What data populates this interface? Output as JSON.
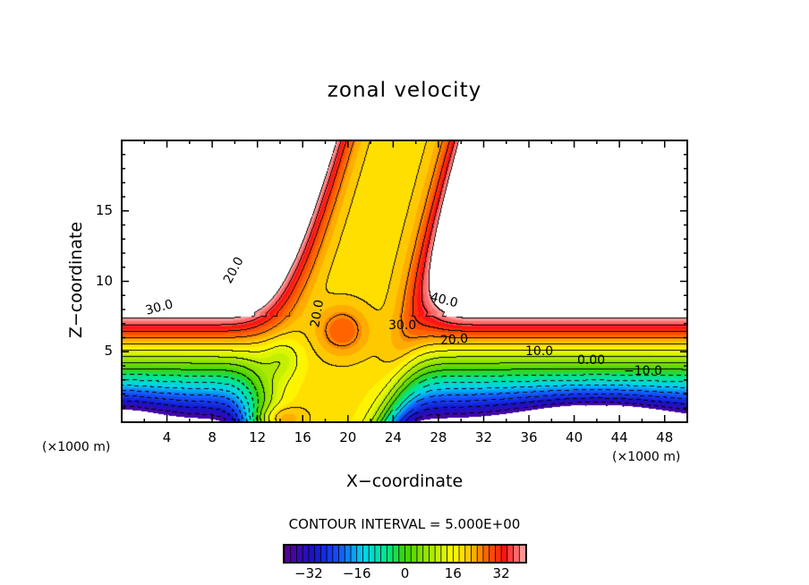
{
  "chart_data": {
    "type": "heatmap",
    "subtype": "filled contour",
    "title": "zonal velocity",
    "xlabel": "X−coordinate",
    "ylabel": "Z−coordinate",
    "x_unit_left": "(×1000 m)",
    "x_unit_right": "(×1000 m)",
    "xlim": [
      0,
      50
    ],
    "ylim": [
      0,
      20
    ],
    "xticks": [
      "4",
      "8",
      "12",
      "16",
      "20",
      "24",
      "28",
      "32",
      "36",
      "40",
      "44",
      "48"
    ],
    "xtick_values": [
      4,
      8,
      12,
      16,
      20,
      24,
      28,
      32,
      36,
      40,
      44,
      48
    ],
    "yticks": [
      "5",
      "10",
      "15"
    ],
    "ytick_values": [
      5,
      10,
      15
    ],
    "contour_interval_text": "CONTOUR INTERVAL = 5.000E+00",
    "contour_interval": 5,
    "contour_labels": [
      "30.0",
      "20.0",
      "20.0",
      "40.0",
      "30.0",
      "20.0",
      "10.0",
      "0.00",
      "−10.0"
    ],
    "colorbar": {
      "range": [
        -40,
        40
      ],
      "ticks": [
        "−32",
        "−16",
        "0",
        "16",
        "32"
      ],
      "tick_values": [
        -32,
        -16,
        0,
        16,
        32
      ]
    }
  },
  "colors": {
    "low": "#6a00a0",
    "blue": "#1030e0",
    "cyan": "#00e0f0",
    "green": "#30d000",
    "yellow": "#ffff00",
    "orange": "#ff8000",
    "red": "#ff1010",
    "high": "#ffa0a0"
  }
}
